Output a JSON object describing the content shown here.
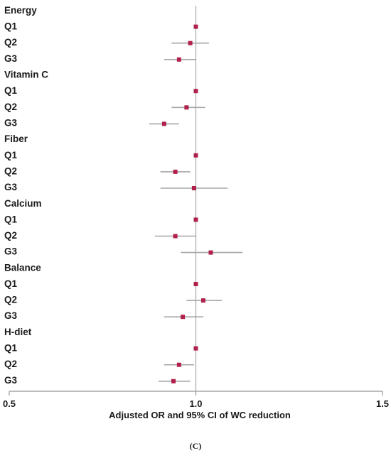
{
  "chart_data": {
    "type": "forest",
    "title": "",
    "xlabel": "Adjusted OR and 95% CI of WC reduction",
    "ylabel": "",
    "xlim": [
      0.5,
      1.5
    ],
    "x_ticks": [
      0.5,
      1.0,
      1.5
    ],
    "x_tick_labels": [
      "0.5",
      "1.0",
      "1.5"
    ],
    "reference_line": 1.0,
    "grid": false,
    "marker_color": "#b0204a",
    "ci_color": "#a6a6a6",
    "axis_color": "#a6a6a6",
    "groups": [
      {
        "name": "Energy",
        "rows": [
          {
            "label": "Q1",
            "or": 1.0,
            "ci": [
              1.0,
              1.0
            ]
          },
          {
            "label": "Q2",
            "or": 0.985,
            "ci": [
              0.935,
              1.035
            ]
          },
          {
            "label": "G3",
            "or": 0.955,
            "ci": [
              0.915,
              1.0
            ]
          }
        ]
      },
      {
        "name": "Vitamin C",
        "rows": [
          {
            "label": "Q1",
            "or": 1.0,
            "ci": [
              1.0,
              1.0
            ]
          },
          {
            "label": "Q2",
            "or": 0.975,
            "ci": [
              0.935,
              1.025
            ]
          },
          {
            "label": "G3",
            "or": 0.915,
            "ci": [
              0.875,
              0.955
            ]
          }
        ]
      },
      {
        "name": "Fiber",
        "rows": [
          {
            "label": "Q1",
            "or": 1.0,
            "ci": [
              1.0,
              1.0
            ]
          },
          {
            "label": "Q2",
            "or": 0.945,
            "ci": [
              0.905,
              0.985
            ]
          },
          {
            "label": "G3",
            "or": 0.995,
            "ci": [
              0.905,
              1.085
            ]
          }
        ]
      },
      {
        "name": "Calcium",
        "rows": [
          {
            "label": "Q1",
            "or": 1.0,
            "ci": [
              1.0,
              1.0
            ]
          },
          {
            "label": "Q2",
            "or": 0.945,
            "ci": [
              0.89,
              1.0
            ]
          },
          {
            "label": "G3",
            "or": 1.04,
            "ci": [
              0.96,
              1.125
            ]
          }
        ]
      },
      {
        "name": "Balance",
        "rows": [
          {
            "label": "Q1",
            "or": 1.0,
            "ci": [
              1.0,
              1.0
            ]
          },
          {
            "label": "Q2",
            "or": 1.02,
            "ci": [
              0.975,
              1.07
            ]
          },
          {
            "label": "G3",
            "or": 0.965,
            "ci": [
              0.915,
              1.02
            ]
          }
        ]
      },
      {
        "name": "H-diet",
        "rows": [
          {
            "label": "Q1",
            "or": 1.0,
            "ci": [
              1.0,
              1.0
            ]
          },
          {
            "label": "Q2",
            "or": 0.955,
            "ci": [
              0.915,
              0.995
            ]
          },
          {
            "label": "G3",
            "or": 0.94,
            "ci": [
              0.9,
              0.985
            ]
          }
        ]
      }
    ]
  },
  "panel_label": "(C)"
}
